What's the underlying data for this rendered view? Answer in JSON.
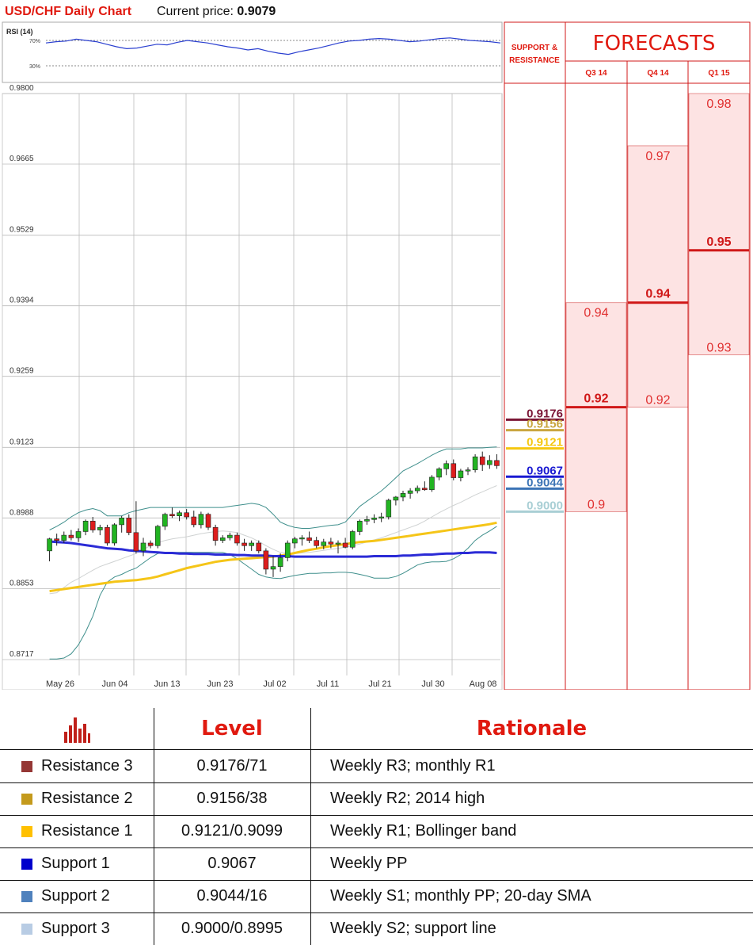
{
  "header": {
    "title": "USD/CHF Daily Chart",
    "price_label": "Current price: ",
    "price_value": "0.9079"
  },
  "rsi": {
    "label": "RSI (14)",
    "upper_label": "70%",
    "lower_label": "30%",
    "values": [
      66,
      68,
      69,
      72,
      70,
      68,
      64,
      60,
      57,
      58,
      61,
      64,
      63,
      67,
      70,
      68,
      66,
      63,
      60,
      58,
      55,
      57,
      53,
      50,
      48,
      52,
      55,
      58,
      62,
      66,
      69,
      70,
      72,
      73,
      72,
      70,
      68,
      69,
      71,
      73,
      74,
      72,
      70,
      69,
      68,
      66
    ]
  },
  "chart_data": {
    "type": "candlestick",
    "y_ticks": [
      "0.9800",
      "0.9665",
      "0.9529",
      "0.9394",
      "0.9259",
      "0.9123",
      "0.8988",
      "0.8853",
      "0.8717"
    ],
    "x_ticks": [
      "May 26",
      "Jun 04",
      "Jun 13",
      "Jun 23",
      "Jul 02",
      "Jul 11",
      "Jul 21",
      "Jul 30",
      "Aug 08"
    ],
    "ylim": [
      0.8717,
      0.98
    ],
    "candles": [
      [
        0.8925,
        0.895,
        0.8905,
        0.8948
      ],
      [
        0.8948,
        0.8958,
        0.8935,
        0.8945
      ],
      [
        0.8945,
        0.8962,
        0.894,
        0.8955
      ],
      [
        0.8955,
        0.8965,
        0.8945,
        0.895
      ],
      [
        0.895,
        0.8968,
        0.8942,
        0.8962
      ],
      [
        0.8962,
        0.8985,
        0.8955,
        0.8982
      ],
      [
        0.8982,
        0.899,
        0.896,
        0.8965
      ],
      [
        0.8965,
        0.8975,
        0.8955,
        0.897
      ],
      [
        0.897,
        0.8975,
        0.8935,
        0.894
      ],
      [
        0.894,
        0.8978,
        0.8935,
        0.8975
      ],
      [
        0.8975,
        0.8992,
        0.896,
        0.8988
      ],
      [
        0.8988,
        0.8995,
        0.8955,
        0.896
      ],
      [
        0.896,
        0.902,
        0.892,
        0.8925
      ],
      [
        0.8925,
        0.895,
        0.8915,
        0.894
      ],
      [
        0.894,
        0.8945,
        0.893,
        0.8935
      ],
      [
        0.8935,
        0.8975,
        0.893,
        0.8972
      ],
      [
        0.8972,
        0.8998,
        0.8965,
        0.8995
      ],
      [
        0.8995,
        0.9008,
        0.8988,
        0.8992
      ],
      [
        0.8992,
        0.9002,
        0.8982,
        0.8998
      ],
      [
        0.8998,
        0.9005,
        0.8985,
        0.899
      ],
      [
        0.899,
        0.9002,
        0.897,
        0.8975
      ],
      [
        0.8975,
        0.9,
        0.8968,
        0.8995
      ],
      [
        0.8995,
        0.8998,
        0.8965,
        0.897
      ],
      [
        0.897,
        0.8975,
        0.8935,
        0.8945
      ],
      [
        0.8945,
        0.8955,
        0.894,
        0.895
      ],
      [
        0.895,
        0.896,
        0.8945,
        0.8955
      ],
      [
        0.8955,
        0.896,
        0.8935,
        0.894
      ],
      [
        0.894,
        0.8948,
        0.8925,
        0.8935
      ],
      [
        0.8935,
        0.8945,
        0.8925,
        0.894
      ],
      [
        0.894,
        0.8945,
        0.892,
        0.8925
      ],
      [
        0.8925,
        0.893,
        0.888,
        0.889
      ],
      [
        0.889,
        0.8915,
        0.8875,
        0.8895
      ],
      [
        0.8895,
        0.892,
        0.8885,
        0.8912
      ],
      [
        0.8912,
        0.8945,
        0.8905,
        0.894
      ],
      [
        0.894,
        0.8952,
        0.893,
        0.8948
      ],
      [
        0.8948,
        0.8955,
        0.8935,
        0.895
      ],
      [
        0.895,
        0.8962,
        0.894,
        0.8945
      ],
      [
        0.8945,
        0.8952,
        0.893,
        0.8935
      ],
      [
        0.8935,
        0.8948,
        0.8928,
        0.8942
      ],
      [
        0.8942,
        0.895,
        0.893,
        0.8938
      ],
      [
        0.8938,
        0.8945,
        0.892,
        0.894
      ],
      [
        0.894,
        0.895,
        0.893,
        0.8932
      ],
      [
        0.8932,
        0.8965,
        0.8928,
        0.8962
      ],
      [
        0.8962,
        0.8985,
        0.8955,
        0.8982
      ],
      [
        0.8982,
        0.8992,
        0.8975,
        0.8985
      ],
      [
        0.8985,
        0.8995,
        0.8978,
        0.8988
      ],
      [
        0.8988,
        0.8998,
        0.898,
        0.899
      ],
      [
        0.899,
        0.9025,
        0.8985,
        0.9022
      ],
      [
        0.9022,
        0.903,
        0.9012,
        0.9028
      ],
      [
        0.9028,
        0.904,
        0.902,
        0.9035
      ],
      [
        0.9035,
        0.9045,
        0.9025,
        0.904
      ],
      [
        0.904,
        0.905,
        0.9035,
        0.9045
      ],
      [
        0.9045,
        0.9058,
        0.904,
        0.9042
      ],
      [
        0.9042,
        0.907,
        0.9038,
        0.9066
      ],
      [
        0.9066,
        0.9085,
        0.906,
        0.9082
      ],
      [
        0.9082,
        0.9098,
        0.907,
        0.9092
      ],
      [
        0.9092,
        0.91,
        0.906,
        0.9065
      ],
      [
        0.9065,
        0.9082,
        0.9058,
        0.9078
      ],
      [
        0.9078,
        0.9085,
        0.907,
        0.908
      ],
      [
        0.908,
        0.911,
        0.9075,
        0.9105
      ],
      [
        0.9105,
        0.9115,
        0.9078,
        0.909
      ],
      [
        0.909,
        0.9108,
        0.9082,
        0.9098
      ],
      [
        0.9098,
        0.911,
        0.9082,
        0.9088
      ]
    ],
    "sma_200": [
      0.8943,
      0.8942,
      0.8941,
      0.894,
      0.8938,
      0.8936,
      0.8934,
      0.8932,
      0.893,
      0.8929,
      0.8928,
      0.8926,
      0.8925,
      0.8924,
      0.8923,
      0.8922,
      0.8921,
      0.8921,
      0.892,
      0.892,
      0.8919,
      0.8919,
      0.8919,
      0.8918,
      0.8918,
      0.8918,
      0.8917,
      0.8917,
      0.8916,
      0.8916,
      0.8916,
      0.8915,
      0.8915,
      0.8915,
      0.8914,
      0.8914,
      0.8914,
      0.8914,
      0.8914,
      0.8914,
      0.8914,
      0.8914,
      0.8914,
      0.8914,
      0.8914,
      0.8915,
      0.8915,
      0.8915,
      0.8915,
      0.8916,
      0.8916,
      0.8917,
      0.8918,
      0.8918,
      0.8919,
      0.892,
      0.892,
      0.8921,
      0.8921,
      0.8922,
      0.8922,
      0.8922,
      0.8921
    ],
    "sma_100": [
      0.8848,
      0.885,
      0.8852,
      0.8854,
      0.8856,
      0.8858,
      0.886,
      0.8862,
      0.8864,
      0.8866,
      0.8867,
      0.8868,
      0.8869,
      0.8871,
      0.8873,
      0.8876,
      0.888,
      0.8884,
      0.8888,
      0.8892,
      0.8895,
      0.8898,
      0.8901,
      0.8904,
      0.8906,
      0.8908,
      0.8909,
      0.891,
      0.8911,
      0.8912,
      0.8913,
      0.8914,
      0.8916,
      0.8918,
      0.8921,
      0.8924,
      0.8927,
      0.8929,
      0.8932,
      0.8934,
      0.8936,
      0.8938,
      0.894,
      0.8942,
      0.8943,
      0.8944,
      0.8946,
      0.8948,
      0.895,
      0.8952,
      0.8954,
      0.8956,
      0.8958,
      0.896,
      0.8962,
      0.8964,
      0.8966,
      0.8968,
      0.897,
      0.8972,
      0.8974,
      0.8976,
      0.8979
    ],
    "boll_upper": [
      0.8965,
      0.8972,
      0.898,
      0.899,
      0.8998,
      0.9003,
      0.9006,
      0.9002,
      0.8992,
      0.8992,
      0.8992,
      0.8998,
      0.9002,
      0.9005,
      0.9008,
      0.9008,
      0.9008,
      0.9008,
      0.9008,
      0.9008,
      0.9008,
      0.9008,
      0.9008,
      0.9008,
      0.9008,
      0.901,
      0.9012,
      0.9014,
      0.9016,
      0.9014,
      0.9008,
      0.8995,
      0.898,
      0.8974,
      0.897,
      0.8968,
      0.8968,
      0.897,
      0.8972,
      0.8974,
      0.8975,
      0.898,
      0.8995,
      0.901,
      0.902,
      0.903,
      0.904,
      0.9052,
      0.9065,
      0.9078,
      0.9085,
      0.9092,
      0.91,
      0.9108,
      0.9115,
      0.912,
      0.912,
      0.912,
      0.9122,
      0.9122,
      0.9122,
      0.9123,
      0.9124
    ],
    "boll_lower": [
      0.8718,
      0.8718,
      0.872,
      0.8728,
      0.8745,
      0.877,
      0.88,
      0.884,
      0.8865,
      0.8875,
      0.888,
      0.8887,
      0.8892,
      0.8902,
      0.8912,
      0.892,
      0.8922,
      0.8922,
      0.8922,
      0.8922,
      0.8922,
      0.8922,
      0.8922,
      0.8922,
      0.8922,
      0.8918,
      0.891,
      0.89,
      0.889,
      0.888,
      0.8875,
      0.8873,
      0.8872,
      0.8875,
      0.8878,
      0.888,
      0.8882,
      0.8882,
      0.8883,
      0.8883,
      0.8884,
      0.8884,
      0.8883,
      0.888,
      0.8877,
      0.8873,
      0.8873,
      0.8873,
      0.8876,
      0.8882,
      0.889,
      0.8898,
      0.8902,
      0.8904,
      0.8904,
      0.8905,
      0.891,
      0.8918,
      0.893,
      0.8945,
      0.8955,
      0.8963,
      0.8972
    ],
    "boll_mid": [
      0.8843,
      0.8845,
      0.8855,
      0.8865,
      0.8872,
      0.888,
      0.8888,
      0.8895,
      0.89,
      0.8905,
      0.891,
      0.8915,
      0.892,
      0.8928,
      0.8935,
      0.894,
      0.8945,
      0.8948,
      0.895,
      0.8952,
      0.8955,
      0.8958,
      0.896,
      0.8962,
      0.8963,
      0.8962,
      0.896,
      0.8955,
      0.895,
      0.8943,
      0.8935,
      0.8928,
      0.8922,
      0.892,
      0.892,
      0.8921,
      0.8922,
      0.8924,
      0.8926,
      0.8928,
      0.893,
      0.8932,
      0.8935,
      0.8938,
      0.8942,
      0.8946,
      0.895,
      0.8955,
      0.896,
      0.8965,
      0.897,
      0.8975,
      0.8982,
      0.899,
      0.8998,
      0.9005,
      0.9012,
      0.9018,
      0.9025,
      0.9032,
      0.9038,
      0.9044,
      0.905
    ]
  },
  "support_resistance": {
    "header_line1": "SUPPORT &",
    "header_line2": "RESISTANCE",
    "levels": [
      {
        "label": "0.9176",
        "value": 0.9176,
        "color": "#7b1636"
      },
      {
        "label": "0.9156",
        "value": 0.9156,
        "color": "#c9a640"
      },
      {
        "label": "0.9121",
        "value": 0.9121,
        "color": "#f5c710"
      },
      {
        "label": "0.9067",
        "value": 0.9067,
        "color": "#1a1ad2"
      },
      {
        "label": "0.9044",
        "value": 0.9044,
        "color": "#3c74b6"
      },
      {
        "label": "0.9000",
        "value": 0.9,
        "color": "#a9cfd5"
      }
    ]
  },
  "forecasts": {
    "title": "FORECASTS",
    "columns": [
      {
        "label": "Q3 14",
        "high": "0.94",
        "high_value": 0.94,
        "median": "0.92",
        "median_value": 0.92,
        "low": "0.9",
        "low_value": 0.9
      },
      {
        "label": "Q4 14",
        "high": "0.97",
        "high_value": 0.97,
        "median": "0.94",
        "median_value": 0.94,
        "low": "0.92",
        "low_value": 0.92
      },
      {
        "label": "Q1 15",
        "high": "0.98",
        "high_value": 0.98,
        "median": "0.95",
        "median_value": 0.95,
        "low": "0.93",
        "low_value": 0.93
      }
    ]
  },
  "table": {
    "headers": {
      "level": "Level",
      "rationale": "Rationale"
    },
    "rows": [
      {
        "name": "Resistance 3",
        "level": "0.9176/71",
        "rationale": "Weekly R3; monthly R1",
        "color": "#953735"
      },
      {
        "name": "Resistance 2",
        "level": "0.9156/38",
        "rationale": "Weekly R2; 2014 high",
        "color": "#c49a1c"
      },
      {
        "name": "Resistance 1",
        "level": "0.9121/0.9099",
        "rationale": "Weekly R1; Bollinger band",
        "color": "#ffc000"
      },
      {
        "name": "Support 1",
        "level": "0.9067",
        "rationale": "Weekly PP",
        "color": "#0000cc"
      },
      {
        "name": "Support 2",
        "level": "0.9044/16",
        "rationale": "Weekly S1; monthly PP; 20-day SMA",
        "color": "#4f81bd"
      },
      {
        "name": "Support 3",
        "level": "0.9000/0.8995",
        "rationale": "Weekly S2; support line",
        "color": "#b8cce4"
      }
    ]
  }
}
